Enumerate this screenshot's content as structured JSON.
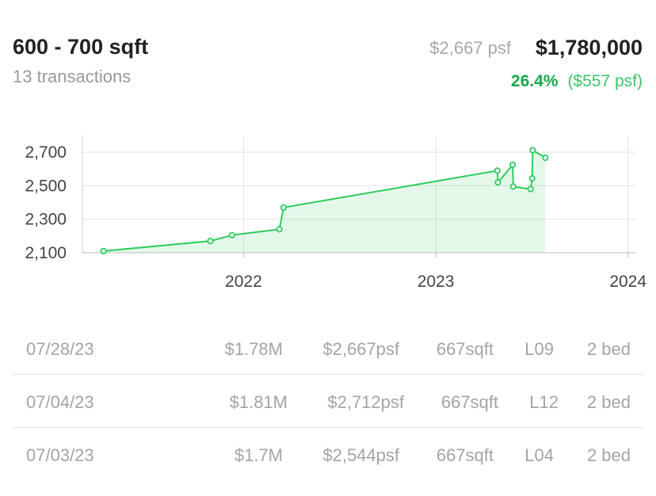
{
  "header": {
    "title": "600 - 700 sqft",
    "subtitle": "13 transactions",
    "psf": "$2,667 psf",
    "price": "$1,780,000",
    "change_pct": "26.4%",
    "change_psf": "($557 psf)"
  },
  "chart_data": {
    "type": "area",
    "xlabel": "",
    "ylabel": "",
    "x_ticks": [
      "2022",
      "2023",
      "2024"
    ],
    "y_ticks": [
      "2,100",
      "2,300",
      "2,500",
      "2,700"
    ],
    "ylim": [
      2100,
      2800
    ],
    "xlim": [
      "2021-03-01",
      "2024-01-15"
    ],
    "grid": true,
    "color": "#2ecc5f",
    "points": [
      {
        "x": "2021-04-10",
        "y": 2110
      },
      {
        "x": "2021-10-30",
        "y": 2170
      },
      {
        "x": "2021-12-10",
        "y": 2205
      },
      {
        "x": "2022-03-10",
        "y": 2240
      },
      {
        "x": "2022-03-18",
        "y": 2370
      },
      {
        "x": "2023-04-28",
        "y": 2590
      },
      {
        "x": "2023-04-29",
        "y": 2520
      },
      {
        "x": "2023-05-27",
        "y": 2625
      },
      {
        "x": "2023-05-28",
        "y": 2495
      },
      {
        "x": "2023-06-30",
        "y": 2480
      },
      {
        "x": "2023-07-03",
        "y": 2544
      },
      {
        "x": "2023-07-04",
        "y": 2712
      },
      {
        "x": "2023-07-28",
        "y": 2667
      }
    ]
  },
  "transactions": [
    {
      "date": "07/28/23",
      "price": "$1.78M",
      "psf": "$2,667psf",
      "sqft": "667sqft",
      "level": "L09",
      "bed": "2 bed"
    },
    {
      "date": "07/04/23",
      "price": "$1.81M",
      "psf": "$2,712psf",
      "sqft": "667sqft",
      "level": "L12",
      "bed": "2 bed"
    },
    {
      "date": "07/03/23",
      "price": "$1.7M",
      "psf": "$2,544psf",
      "sqft": "667sqft",
      "level": "L04",
      "bed": "2 bed"
    }
  ]
}
